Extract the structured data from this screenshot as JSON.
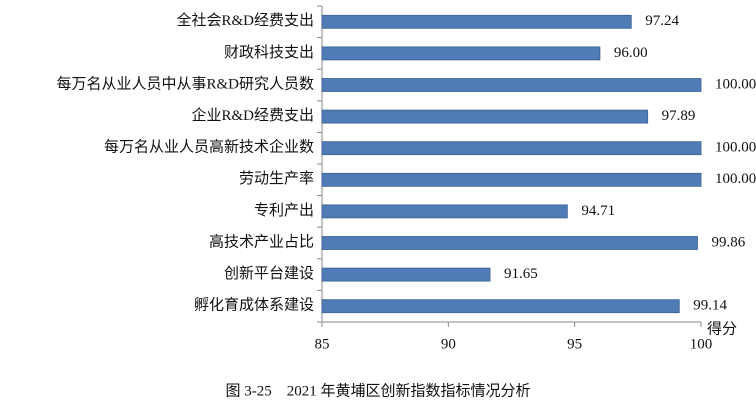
{
  "chart_data": {
    "type": "bar",
    "orientation": "horizontal",
    "title": "图 3-25　2021 年黄埔区创新指数指标情况分析",
    "x_label": "得分",
    "categories": [
      "全社会R&D经费支出",
      "财政科技支出",
      "每万名从业人员中从事R&D研究人员数",
      "企业R&D经费支出",
      "每万名从业人员高新技术企业数",
      "劳动生产率",
      "专利产出",
      "高技术产业占比",
      "创新平台建设",
      "孵化育成体系建设"
    ],
    "values": [
      97.24,
      96,
      100,
      97.89,
      100,
      100,
      94.71,
      99.86,
      91.65,
      99.14
    ],
    "value_labels": [
      "97.24",
      "96.00",
      "100.00",
      "97.89",
      "100.00",
      "100.00",
      "94.71",
      "99.86",
      "91.65",
      "99.14"
    ],
    "color": "#4f7cb6",
    "xlim": [
      85,
      100
    ],
    "xticks": [
      85,
      90,
      95,
      100
    ]
  }
}
